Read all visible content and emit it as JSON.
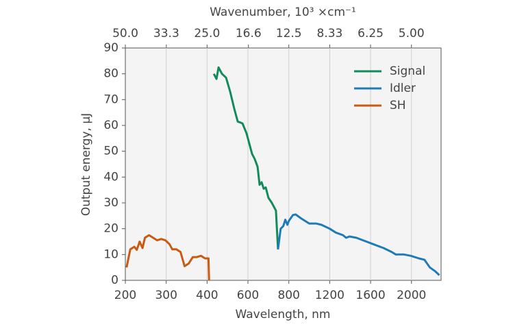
{
  "chart_data": {
    "type": "line",
    "x_label": "Wavelength, nm",
    "y_label": "Output energy, μJ",
    "x2_label": "Wavenumber, 10³ ×cm⁻¹",
    "xlim": [
      200,
      2290
    ],
    "xticks": [
      200,
      300,
      400,
      600,
      800,
      1200,
      1600,
      2000
    ],
    "x2ticks": [
      {
        "value": 50,
        "label": "50.0"
      },
      33.3,
      {
        "value": 25,
        "label": "25.0"
      },
      16.6,
      12.5,
      8.33,
      6.25,
      {
        "value": 5,
        "label": "5.00"
      }
    ],
    "ylim": [
      0,
      90
    ],
    "yticks": [
      0,
      10,
      20,
      30,
      40,
      50,
      60,
      70,
      80,
      90
    ],
    "grid": "x",
    "legend": "top-right",
    "series": [
      {
        "name": "Signal",
        "color": "#128a5c",
        "x": [
          433,
          446,
          456,
          473,
          493,
          513,
          533,
          550,
          573,
          593,
          620,
          633,
          647,
          657,
          667,
          677,
          687,
          700,
          717,
          737,
          747
        ],
        "values": [
          80,
          78,
          82.5,
          80,
          78.5,
          73,
          66.5,
          61.5,
          60.8,
          57,
          49,
          47,
          44,
          37,
          38,
          35.5,
          36,
          32,
          30,
          27,
          12
        ]
      },
      {
        "name": "Idler",
        "color": "#1f7bb8",
        "x": [
          747,
          760,
          773,
          783,
          793,
          800,
          840,
          867,
          920,
          1000,
          1067,
          1120,
          1200,
          1260,
          1330,
          1360,
          1393,
          1460,
          1560,
          1627,
          1727,
          1807,
          1847,
          1927,
          1993,
          2073,
          2127,
          2180,
          2233,
          2273
        ],
        "values": [
          12,
          20,
          21,
          23.5,
          21.5,
          23,
          25.3,
          25.5,
          24,
          22,
          22,
          21.5,
          20,
          18.5,
          17.5,
          16.5,
          17,
          16.5,
          15,
          14,
          12.5,
          11,
          10,
          10,
          9.5,
          8.5,
          8,
          5,
          3.5,
          2
        ]
      },
      {
        "name": "SH",
        "color": "#c85a12",
        "x": [
          203,
          212,
          222,
          228,
          235,
          242,
          248,
          258,
          268,
          278,
          288,
          298,
          308,
          315,
          325,
          335,
          345,
          355,
          365,
          375,
          385,
          395,
          407,
          410
        ],
        "values": [
          5,
          12,
          13,
          11.8,
          15,
          12.5,
          16.5,
          17.5,
          16.5,
          15.5,
          16,
          15.5,
          14,
          12,
          12,
          11,
          5.5,
          6.5,
          9,
          9,
          9.5,
          8.5,
          8.5,
          0
        ]
      }
    ]
  }
}
